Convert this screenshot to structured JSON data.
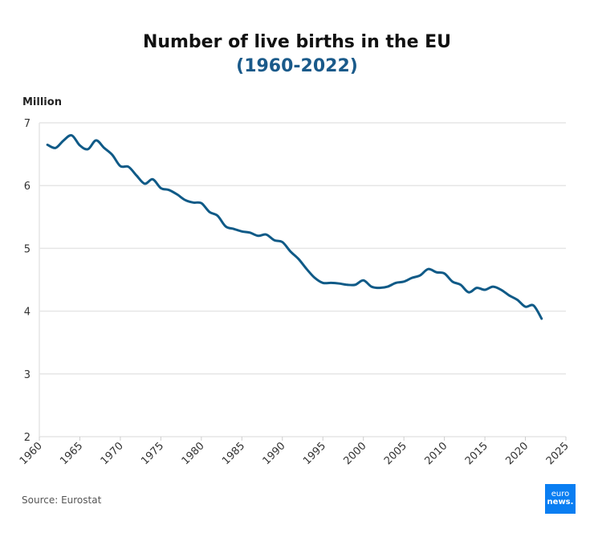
{
  "chart_data": {
    "type": "line",
    "title": "Number of live births in the EU",
    "subtitle": "(1960-2022)",
    "ylabel": "Million",
    "xlabel": "",
    "xlim": [
      1960,
      2025
    ],
    "ylim": [
      2,
      7
    ],
    "x_ticks": [
      1960,
      1965,
      1970,
      1975,
      1980,
      1985,
      1990,
      1995,
      2000,
      2005,
      2010,
      2015,
      2020,
      2025
    ],
    "y_ticks": [
      2,
      3,
      4,
      5,
      6,
      7
    ],
    "grid": "horizontal",
    "color": "#0f5a87",
    "x": [
      1961,
      1962,
      1963,
      1964,
      1965,
      1966,
      1967,
      1968,
      1969,
      1970,
      1971,
      1972,
      1973,
      1974,
      1975,
      1976,
      1977,
      1978,
      1979,
      1980,
      1981,
      1982,
      1983,
      1984,
      1985,
      1986,
      1987,
      1988,
      1989,
      1990,
      1991,
      1992,
      1993,
      1994,
      1995,
      1996,
      1997,
      1998,
      1999,
      2000,
      2001,
      2002,
      2003,
      2004,
      2005,
      2006,
      2007,
      2008,
      2009,
      2010,
      2011,
      2012,
      2013,
      2014,
      2015,
      2016,
      2017,
      2018,
      2019,
      2020,
      2021,
      2022
    ],
    "values": [
      6.65,
      6.6,
      6.72,
      6.8,
      6.64,
      6.58,
      6.72,
      6.6,
      6.49,
      6.31,
      6.3,
      6.16,
      6.03,
      6.1,
      5.96,
      5.93,
      5.86,
      5.77,
      5.73,
      5.72,
      5.58,
      5.52,
      5.35,
      5.31,
      5.27,
      5.25,
      5.2,
      5.22,
      5.13,
      5.1,
      4.95,
      4.83,
      4.67,
      4.53,
      4.45,
      4.45,
      4.44,
      4.42,
      4.42,
      4.49,
      4.39,
      4.37,
      4.39,
      4.45,
      4.47,
      4.53,
      4.57,
      4.67,
      4.62,
      4.6,
      4.47,
      4.42,
      4.3,
      4.37,
      4.34,
      4.39,
      4.34,
      4.25,
      4.18,
      4.07,
      4.09,
      3.88
    ]
  },
  "source": "Source: Eurostat",
  "logo": {
    "line1": "euro",
    "line2": "news.",
    "color": "#0a7ef2"
  }
}
